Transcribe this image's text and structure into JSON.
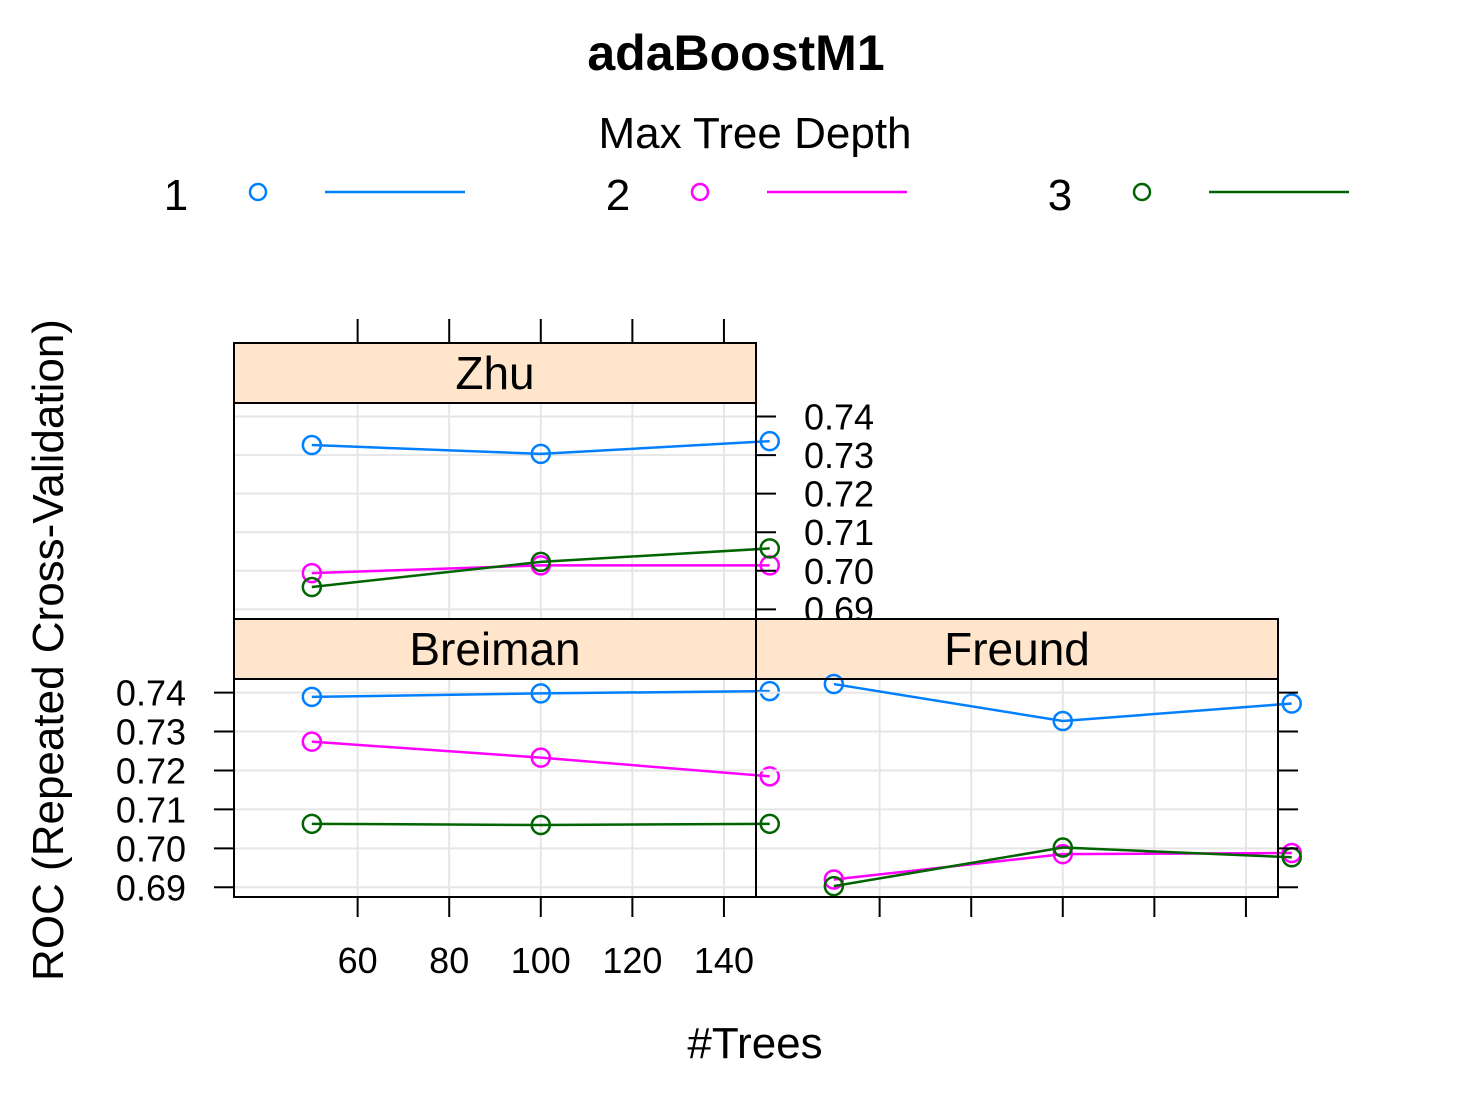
{
  "chart_data": {
    "type": "line",
    "title": "adaBoostM1",
    "xlabel": "#Trees",
    "ylabel": "ROC (Repeated Cross-Validation)",
    "xlim": [
      33,
      147
    ],
    "ylim": [
      0.6875,
      0.7435
    ],
    "x_ticks": [
      60,
      80,
      100,
      120,
      140
    ],
    "x_tick_labels": [
      "60",
      "80",
      "100",
      "120",
      "140"
    ],
    "y_ticks": [
      0.69,
      0.7,
      0.71,
      0.72,
      0.73,
      0.74
    ],
    "y_tick_labels": [
      "0.69",
      "0.70",
      "0.71",
      "0.72",
      "0.73",
      "0.74"
    ],
    "grid": true,
    "legend": {
      "title": "Max Tree Depth",
      "position": "top",
      "entries": [
        {
          "label": "1",
          "color": "#0080ff"
        },
        {
          "label": "2",
          "color": "#ff00ff"
        },
        {
          "label": "3",
          "color": "#006400"
        }
      ]
    },
    "x": [
      50,
      100,
      150
    ],
    "panels": [
      {
        "strip": "Zhu",
        "series": [
          {
            "name": "1",
            "color": "#0080ff",
            "values": [
              0.7326,
              0.7303,
              0.7336
            ]
          },
          {
            "name": "2",
            "color": "#ff00ff",
            "values": [
              0.6994,
              0.7014,
              0.7014
            ]
          },
          {
            "name": "3",
            "color": "#006400",
            "values": [
              0.6958,
              0.7023,
              0.7058
            ]
          }
        ]
      },
      {
        "strip": "Breiman",
        "series": [
          {
            "name": "1",
            "color": "#0080ff",
            "values": [
              0.7389,
              0.7398,
              0.7404
            ]
          },
          {
            "name": "2",
            "color": "#ff00ff",
            "values": [
              0.7274,
              0.7233,
              0.7185
            ]
          },
          {
            "name": "3",
            "color": "#006400",
            "values": [
              0.7063,
              0.706,
              0.7063
            ]
          }
        ]
      },
      {
        "strip": "Freund",
        "series": [
          {
            "name": "1",
            "color": "#0080ff",
            "values": [
              0.7422,
              0.7327,
              0.7372
            ]
          },
          {
            "name": "2",
            "color": "#ff00ff",
            "values": [
              0.692,
              0.6985,
              0.6988
            ]
          },
          {
            "name": "3",
            "color": "#006400",
            "values": [
              0.6903,
              0.7002,
              0.6977
            ]
          }
        ]
      }
    ]
  }
}
